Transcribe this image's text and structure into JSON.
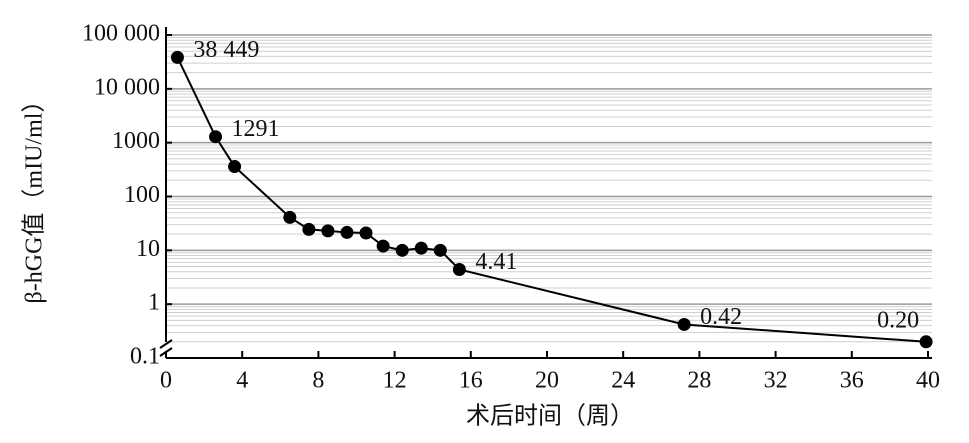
{
  "chart_data": {
    "type": "line",
    "x_label": "术后时间（周）",
    "y_label": "β-hGG值（mIU/ml）",
    "x": [
      0.6,
      2.6,
      3.6,
      6.5,
      7.5,
      8.5,
      9.5,
      10.5,
      11.4,
      12.4,
      13.4,
      14.4,
      15.4,
      27.2,
      39.9
    ],
    "series": [
      {
        "color": "#000000",
        "values": [
          38449,
          1291,
          360,
          41,
          24.5,
          23,
          21.5,
          21,
          12,
          10,
          11,
          10,
          4.41,
          0.42,
          0.2
        ],
        "value_labels": [
          "38 449",
          "1291",
          null,
          null,
          null,
          null,
          null,
          null,
          null,
          null,
          null,
          null,
          "4.41",
          "0.42",
          "0.20"
        ]
      }
    ],
    "xlim": [
      0,
      40
    ],
    "xticks": [
      0,
      4,
      8,
      12,
      16,
      20,
      24,
      28,
      32,
      36,
      40
    ],
    "ylim": [
      0.1,
      100000
    ],
    "log_y": true,
    "yticks": [
      0.1,
      1,
      10,
      100,
      1000,
      {
        "value": 10000,
        "label": "10 000"
      },
      {
        "value": 100000,
        "label": "100 000"
      }
    ],
    "grid": true,
    "minor_grid": true
  }
}
